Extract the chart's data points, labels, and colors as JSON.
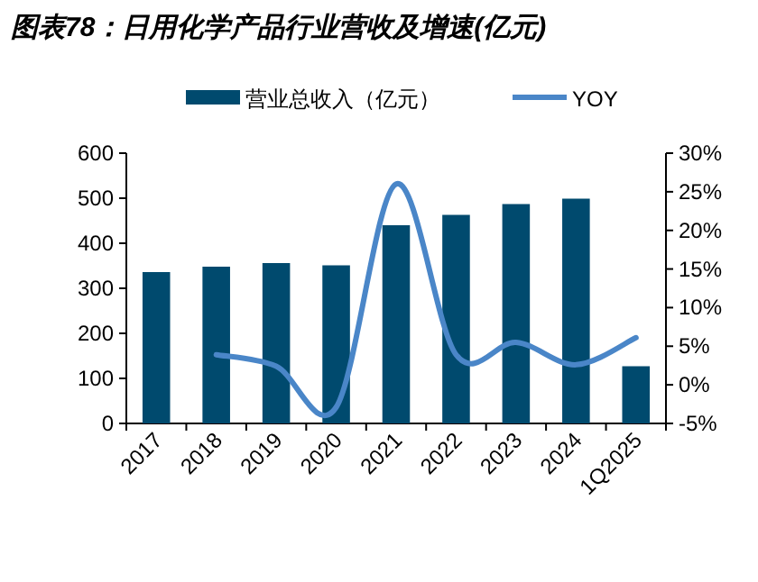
{
  "chart_data": {
    "type": "bar",
    "title": "图表78：日用化学产品行业营收及增速(亿元)",
    "categories": [
      "2017",
      "2018",
      "2019",
      "2020",
      "2021",
      "2022",
      "2023",
      "2024",
      "1Q2025"
    ],
    "series": [
      {
        "name": "营业总收入（亿元）",
        "color": "#004a6e",
        "values": [
          336,
          348,
          356,
          351,
          440,
          463,
          487,
          499,
          127
        ]
      },
      {
        "name": "YOY",
        "type": "line",
        "axis": "y2",
        "color": "#4a86c8",
        "values": [
          null,
          3.9,
          2.4,
          -2.9,
          26.0,
          3.9,
          5.5,
          2.6,
          6.1
        ]
      }
    ],
    "ylim": [
      0,
      600
    ],
    "yticks": [
      0,
      100,
      200,
      300,
      400,
      500,
      600
    ],
    "y2lim": [
      -5,
      30
    ],
    "y2ticks": [
      {
        "value": -5,
        "label": "-5%"
      },
      {
        "value": 0,
        "label": "0%"
      },
      {
        "value": 5,
        "label": "5%"
      },
      {
        "value": 10,
        "label": "10%"
      },
      {
        "value": 15,
        "label": "15%"
      },
      {
        "value": 20,
        "label": "20%"
      },
      {
        "value": 25,
        "label": "25%"
      },
      {
        "value": 30,
        "label": "30%"
      }
    ],
    "grid": false,
    "legend": "top",
    "marker": "none",
    "line_style": "solid"
  }
}
